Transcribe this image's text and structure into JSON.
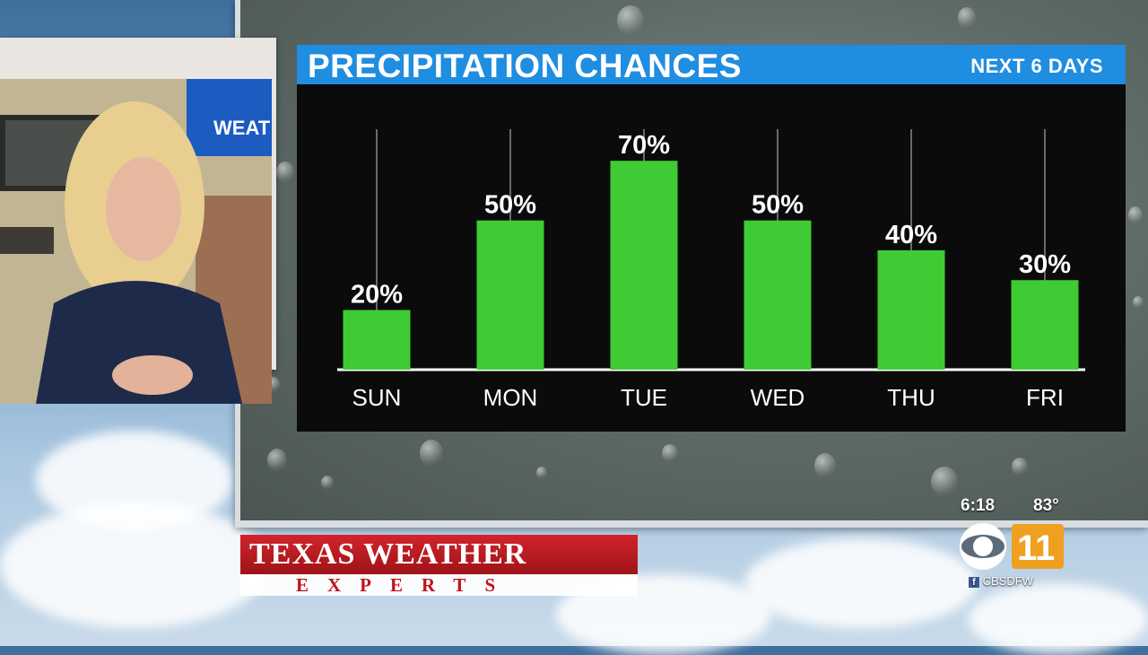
{
  "chart_data": {
    "type": "bar",
    "title": "PRECIPITATION CHANCES",
    "subtitle": "NEXT 6 DAYS",
    "categories": [
      "SUN",
      "MON",
      "TUE",
      "WED",
      "THU",
      "FRI"
    ],
    "values": [
      20,
      50,
      70,
      50,
      40,
      30
    ],
    "value_labels": [
      "20%",
      "50%",
      "70%",
      "50%",
      "40%",
      "30%"
    ],
    "ylim": [
      0,
      100
    ],
    "bar_color": "#3ecb33",
    "header_color": "#1f8de0",
    "grid": false
  },
  "inset": {
    "wall_screen_text": "WEAT"
  },
  "branding": {
    "show_title": "TEXAS WEATHER",
    "show_subtitle": "EXPERTS",
    "time": "6:18",
    "temperature": "83°",
    "channel_logo": "CBS 11",
    "social_handle": "CBSDFW"
  }
}
